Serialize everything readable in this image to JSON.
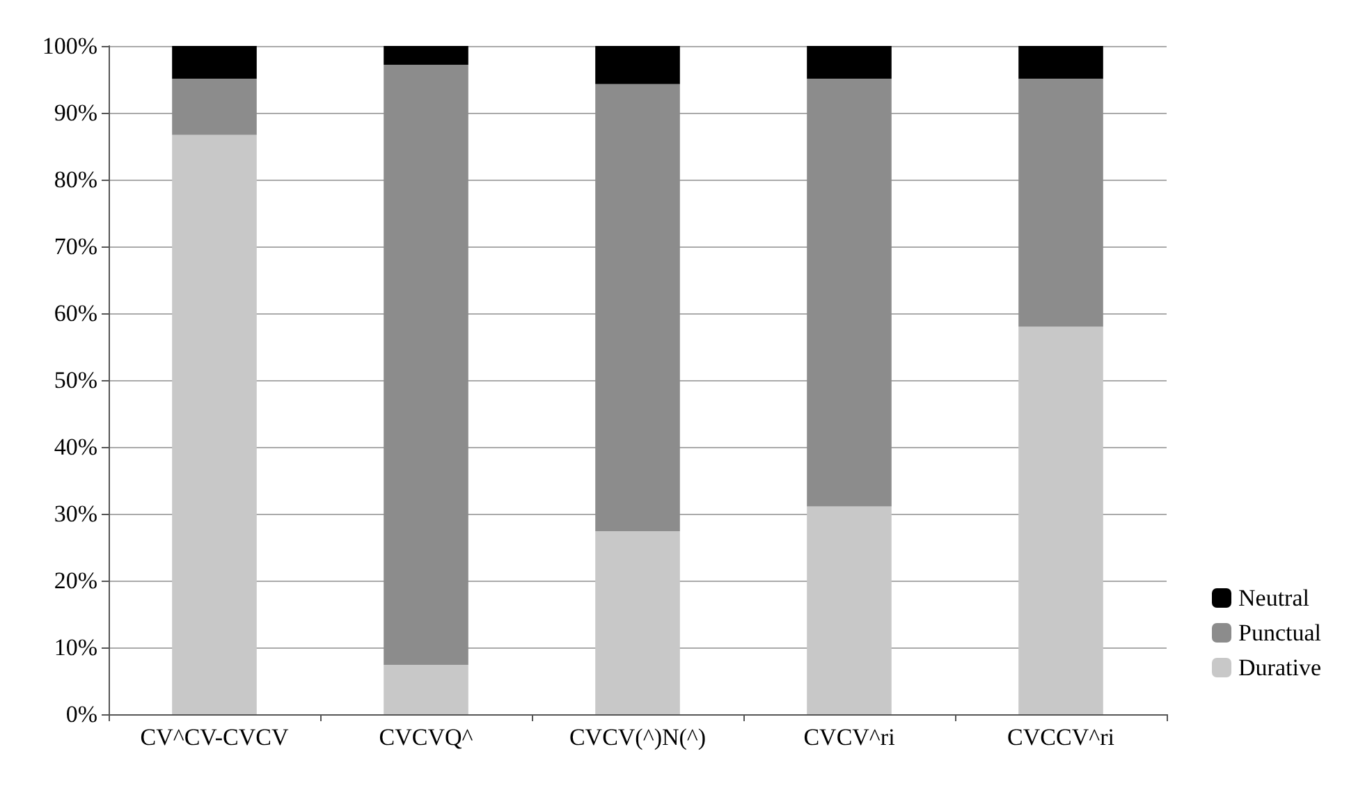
{
  "chart_data": {
    "type": "bar",
    "stacked": true,
    "categories": [
      "CV^CV-CVCV",
      "CVCVQ^",
      "CVCV(^)N(^)",
      "CVCV^ri",
      "CVCCV^ri"
    ],
    "series": [
      {
        "name": "Durative",
        "color": "#c8c8c8",
        "values": [
          86.7,
          7.4,
          27.4,
          31.1,
          58.0
        ]
      },
      {
        "name": "Punctual",
        "color": "#8c8c8c",
        "values": [
          8.4,
          89.8,
          66.9,
          64.0,
          37.1
        ]
      },
      {
        "name": "Neutral",
        "color": "#000000",
        "values": [
          4.9,
          2.8,
          5.7,
          4.9,
          4.9
        ]
      }
    ],
    "ylim": [
      0,
      100
    ],
    "yticks": [
      {
        "value": 0,
        "label": "0%"
      },
      {
        "value": 10,
        "label": "10%"
      },
      {
        "value": 20,
        "label": "20%"
      },
      {
        "value": 30,
        "label": "30%"
      },
      {
        "value": 40,
        "label": "40%"
      },
      {
        "value": 50,
        "label": "50%"
      },
      {
        "value": 60,
        "label": "60%"
      },
      {
        "value": 70,
        "label": "70%"
      },
      {
        "value": 80,
        "label": "80%"
      },
      {
        "value": 90,
        "label": "90%"
      },
      {
        "value": 100,
        "label": "100%"
      }
    ],
    "grid": "y",
    "legend": "bottom right"
  }
}
